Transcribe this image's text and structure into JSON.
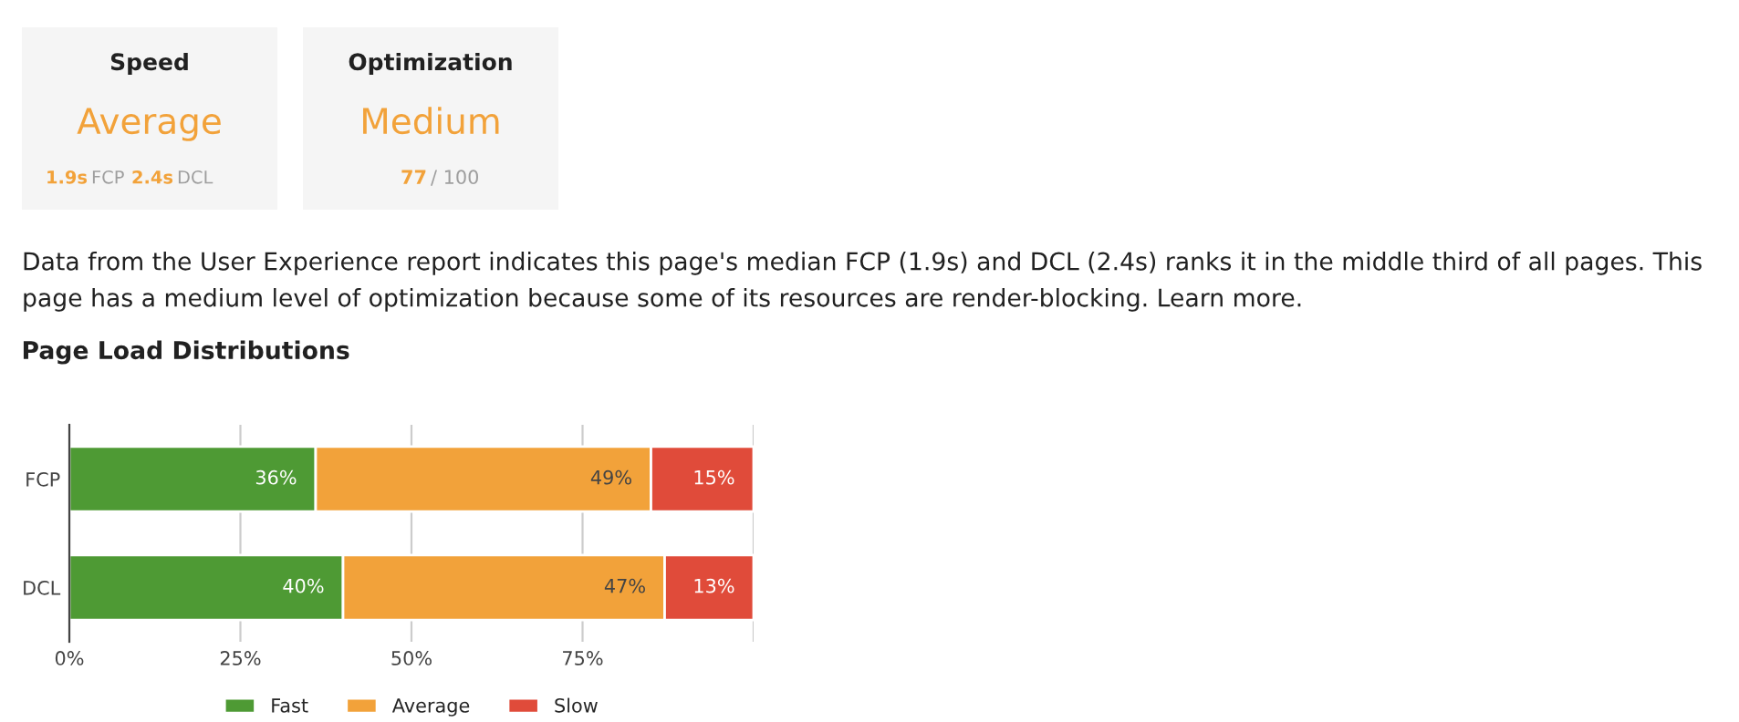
{
  "chart_data": [
    {
      "type": "other",
      "annotations": [
        "Speed",
        "Average",
        "1.9s",
        "FCP",
        "2.4s",
        "DCL",
        "Optimization",
        "Medium",
        "77",
        "/ 100",
        "Data from the User Experience report indicates this page's median FCP (1.9s) and DCL (2.4s) ranks it in the middle third of all pages. This page has a medium level of optimization because some of its resources are render-blocking. Learn more."
      ]
    },
    {
      "type": "bar",
      "title": "Page Load Distributions",
      "orientation": "horizontal",
      "stacked": true,
      "categories": [
        "FCP",
        "DCL"
      ],
      "series": [
        {
          "name": "Fast",
          "color": "#4e9a34",
          "values": [
            36,
            40
          ],
          "value_labels": [
            "36%",
            "40%"
          ]
        },
        {
          "name": "Average",
          "color": "#f2a23a",
          "values": [
            49,
            47
          ],
          "value_labels": [
            "49%",
            "47%"
          ]
        },
        {
          "name": "Slow",
          "color": "#e04b3a",
          "values": [
            15,
            13
          ],
          "value_labels": [
            "15%",
            "13%"
          ]
        }
      ],
      "xlim": [
        0,
        100
      ],
      "xticks": [
        {
          "value": 0,
          "label": "0%"
        },
        {
          "value": 25,
          "label": "25%"
        },
        {
          "value": 50,
          "label": "50%"
        },
        {
          "value": 75,
          "label": "75%"
        },
        {
          "value": 100,
          "label": null
        }
      ],
      "grid": "x",
      "legend": "bottom"
    }
  ]
}
